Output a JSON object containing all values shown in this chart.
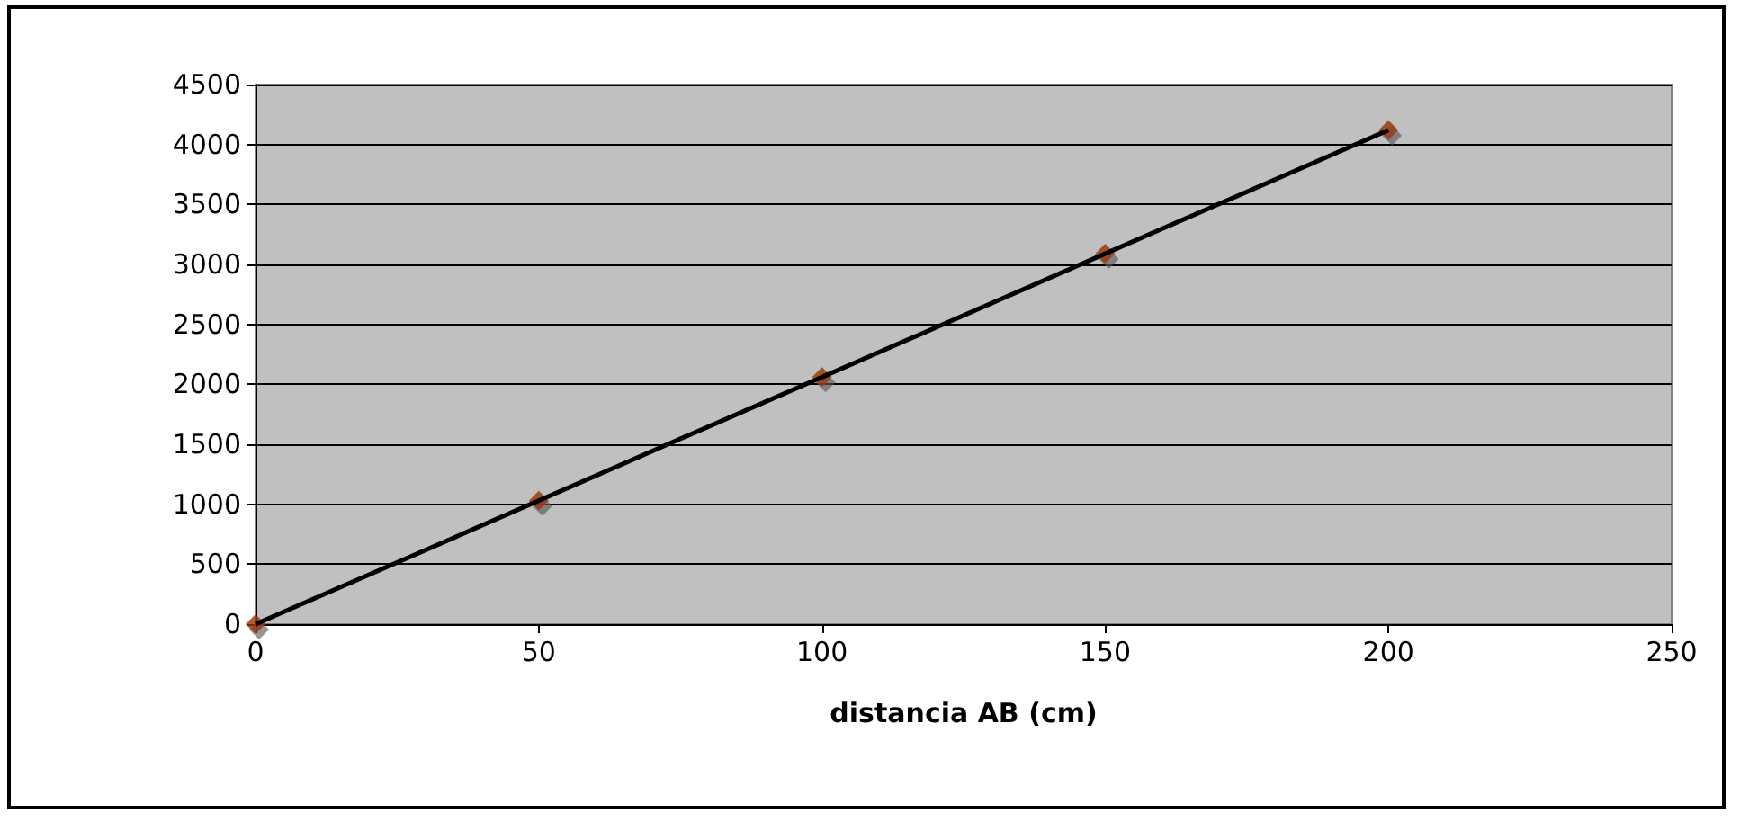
{
  "chart_data": {
    "type": "scatter",
    "xlabel": "distancia AB (cm)",
    "x": [
      0,
      50,
      100,
      150,
      200
    ],
    "series": [
      {
        "type": "scatter",
        "color": "#993300",
        "values": [
          0,
          1030,
          2060,
          3090,
          4120
        ],
        "marker": "diamond"
      },
      {
        "type": "line",
        "color": "#000000",
        "x": [
          0,
          200
        ],
        "values": [
          0,
          4120
        ],
        "marker": "none"
      }
    ],
    "xlim": [
      0,
      250
    ],
    "xticks": [
      0,
      50,
      100,
      150,
      200,
      250
    ],
    "ylim": [
      0,
      4500
    ],
    "yticks": [
      0,
      500,
      1000,
      1500,
      2000,
      2500,
      3000,
      3500,
      4000,
      4500
    ],
    "grid": "y"
  }
}
